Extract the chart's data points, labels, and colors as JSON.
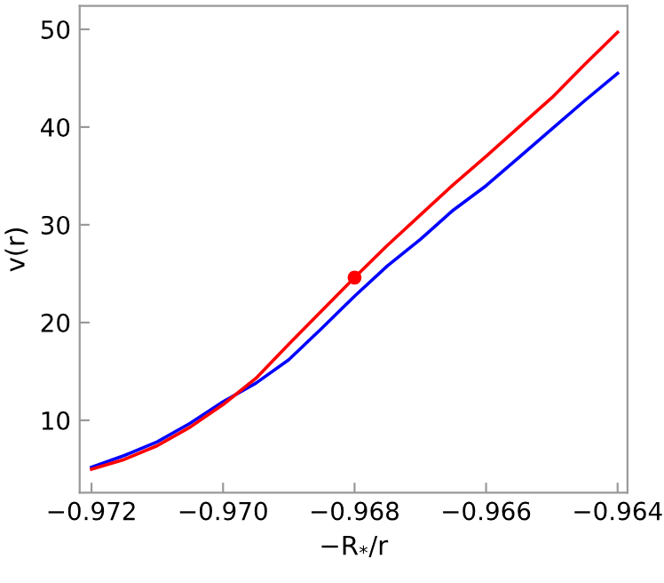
{
  "chart_data": {
    "type": "line",
    "xlabel": "−R$_{*}$/r",
    "ylabel": "v(r)",
    "xlim": [
      -0.97218,
      -0.96385
    ],
    "ylim": [
      2.6,
      52.4
    ],
    "xticks": [
      {
        "value": -0.972,
        "label": "−0.972"
      },
      {
        "value": -0.97,
        "label": "−0.970"
      },
      {
        "value": -0.968,
        "label": "−0.968"
      },
      {
        "value": -0.966,
        "label": "−0.966"
      },
      {
        "value": -0.964,
        "label": "−0.964"
      }
    ],
    "yticks": [
      10,
      20,
      30,
      40,
      50
    ],
    "grid": false,
    "marker": "none",
    "line_style": "solid",
    "series": [
      {
        "color": "#0000ff",
        "x": [
          -0.972,
          -0.9715,
          -0.971,
          -0.9705,
          -0.97,
          -0.9695,
          -0.969,
          -0.9685,
          -0.968,
          -0.9675,
          -0.967,
          -0.9665,
          -0.966,
          -0.9655,
          -0.965,
          -0.9645,
          -0.964
        ],
        "values": [
          5.2,
          6.4,
          7.8,
          9.7,
          11.9,
          13.8,
          16.2,
          19.4,
          22.7,
          25.8,
          28.5,
          31.5,
          34.0,
          36.9,
          39.8,
          42.7,
          45.5
        ]
      },
      {
        "color": "#ff0000",
        "x": [
          -0.972,
          -0.9715,
          -0.971,
          -0.9705,
          -0.97,
          -0.9695,
          -0.969,
          -0.9685,
          -0.968,
          -0.9675,
          -0.967,
          -0.9665,
          -0.966,
          -0.9655,
          -0.965,
          -0.9645,
          -0.964
        ],
        "values": [
          5.0,
          6.0,
          7.4,
          9.3,
          11.6,
          14.3,
          17.8,
          21.2,
          24.6,
          27.9,
          31.0,
          34.1,
          37.0,
          40.0,
          43.0,
          46.4,
          49.7
        ]
      },
      {
        "type": "scatter",
        "color": "#ff0000",
        "marker": "circle",
        "x": [
          -0.968
        ],
        "values": [
          24.6
        ]
      }
    ]
  }
}
